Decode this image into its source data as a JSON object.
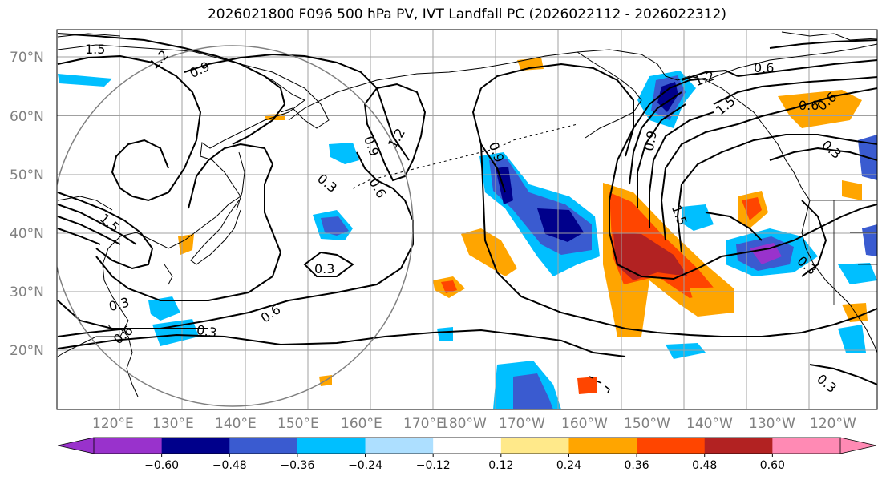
{
  "title": "2026021800 F096 500 hPa PV, IVT Landfall PC (2026022112 - 2026022312)",
  "lat_labels": [
    "70°N",
    "60°N",
    "50°N",
    "40°N",
    "30°N",
    "20°N"
  ],
  "lon_labels": [
    "120°E",
    "130°E",
    "140°E",
    "150°E",
    "160°E",
    "170°E",
    "180°W",
    "170°W",
    "160°W",
    "150°W",
    "140°W",
    "130°W",
    "120°W"
  ],
  "contour_labels": [
    "1.5",
    "1.2",
    "0.9",
    "0.6",
    "0.6",
    "1.2",
    "1.5",
    "0.9",
    "1.2",
    "0.9",
    "0.6",
    "0.3",
    "1.5",
    "0.3",
    "0.6",
    "0.3",
    "0.3",
    "0.6",
    "0.3",
    "1.5",
    "0.9",
    "0.3",
    "0.3",
    "0.6"
  ],
  "colorbar": {
    "ticks": [
      "−0.60",
      "−0.48",
      "−0.36",
      "−0.24",
      "−0.12",
      "0.12",
      "0.24",
      "0.36",
      "0.48",
      "0.60"
    ],
    "colors": [
      "#9932CC",
      "#00008B",
      "#3A5BD0",
      "#00BFFF",
      "#ADDFFF",
      "#FFFFFF",
      "#FFE98A",
      "#FFA500",
      "#FF4500",
      "#B22222",
      "#FF8AB4"
    ]
  },
  "colors": {
    "grid": "#a0a0a0",
    "coast": "#000000",
    "contour": "#000000",
    "circle": "#808080"
  }
}
